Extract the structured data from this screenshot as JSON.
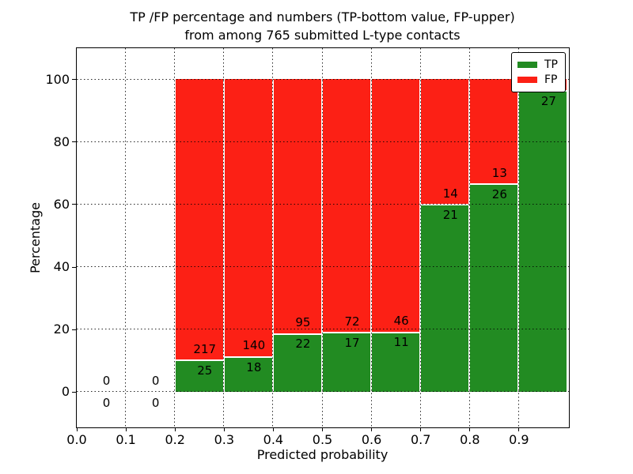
{
  "title": {
    "line1": "TP /FP percentage and numbers (TP-bottom value, FP-upper)",
    "line2": "from among 765 submitted L-type contacts"
  },
  "axes": {
    "xlabel": "Predicted probability",
    "ylabel": "Percentage",
    "x_tick_labels": [
      "0.0",
      "0.1",
      "0.2",
      "0.3",
      "0.4",
      "0.5",
      "0.6",
      "0.7",
      "0.8",
      "0.9"
    ],
    "x_tick_values": [
      0.0,
      0.1,
      0.2,
      0.3,
      0.4,
      0.5,
      0.6,
      0.7,
      0.8,
      0.9
    ],
    "y_tick_labels": [
      "0",
      "20",
      "40",
      "60",
      "80",
      "100"
    ],
    "y_tick_values": [
      0,
      20,
      40,
      60,
      80,
      100
    ]
  },
  "legend": {
    "items": [
      {
        "label": "TP",
        "color": "#228b22"
      },
      {
        "label": "FP",
        "color": "#fc2015"
      }
    ]
  },
  "colors": {
    "tp": "#228b22",
    "fp": "#fc2015",
    "grid": "#000000",
    "background": "#ffffff"
  },
  "chart_data": {
    "type": "bar",
    "stacked": true,
    "title": "TP /FP percentage and numbers (TP-bottom value, FP-upper) from among 765 submitted L-type contacts",
    "xlabel": "Predicted probability",
    "ylabel": "Percentage",
    "xlim": [
      0.0,
      1.0
    ],
    "ylim": [
      -11,
      110
    ],
    "bin_width": 0.1,
    "grid": true,
    "legend_position": "upper right",
    "series_names": [
      "TP",
      "FP"
    ],
    "total_contacts": 765,
    "bins": [
      {
        "x0": 0.0,
        "x1": 0.1,
        "tp_count": 0,
        "fp_count": 0,
        "tp_pct": 0,
        "fp_pct": 0,
        "tp_label": "0",
        "fp_label": "0"
      },
      {
        "x0": 0.1,
        "x1": 0.2,
        "tp_count": 0,
        "fp_count": 0,
        "tp_pct": 0,
        "fp_pct": 0,
        "tp_label": "0",
        "fp_label": "0"
      },
      {
        "x0": 0.2,
        "x1": 0.3,
        "tp_count": 25,
        "fp_count": 217,
        "tp_pct": 10.33,
        "fp_pct": 89.67,
        "tp_label": "25",
        "fp_label": "217"
      },
      {
        "x0": 0.3,
        "x1": 0.4,
        "tp_count": 18,
        "fp_count": 140,
        "tp_pct": 11.39,
        "fp_pct": 88.61,
        "tp_label": "18",
        "fp_label": "140"
      },
      {
        "x0": 0.4,
        "x1": 0.5,
        "tp_count": 22,
        "fp_count": 95,
        "tp_pct": 18.8,
        "fp_pct": 81.2,
        "tp_label": "22",
        "fp_label": "95"
      },
      {
        "x0": 0.5,
        "x1": 0.6,
        "tp_count": 17,
        "fp_count": 72,
        "tp_pct": 19.1,
        "fp_pct": 80.9,
        "tp_label": "17",
        "fp_label": "72"
      },
      {
        "x0": 0.6,
        "x1": 0.7,
        "tp_count": 11,
        "fp_count": 46,
        "tp_pct": 19.3,
        "fp_pct": 80.7,
        "tp_label": "11",
        "fp_label": "46"
      },
      {
        "x0": 0.7,
        "x1": 0.8,
        "tp_count": 21,
        "fp_count": 14,
        "tp_pct": 60.0,
        "fp_pct": 40.0,
        "tp_label": "21",
        "fp_label": "14"
      },
      {
        "x0": 0.8,
        "x1": 0.9,
        "tp_count": 26,
        "fp_count": 13,
        "tp_pct": 66.67,
        "fp_pct": 33.33,
        "tp_label": "26",
        "fp_label": "13"
      },
      {
        "x0": 0.9,
        "x1": 1.0,
        "tp_count": 27,
        "fp_count": null,
        "tp_pct": 96.43,
        "fp_pct": 3.57,
        "tp_label": "27",
        "fp_label": ""
      }
    ]
  }
}
